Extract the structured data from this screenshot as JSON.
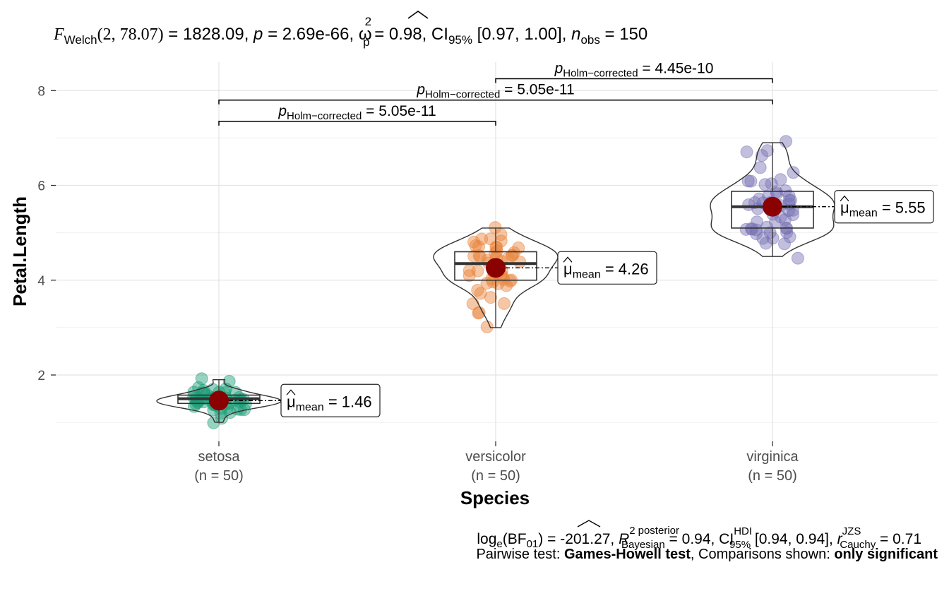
{
  "chart_data": {
    "type": "violin-box-scatter",
    "title": {
      "F_sym": "F",
      "F_sub": "Welch",
      "F_args": "(2, 78.07)",
      "F_val": " = 1828.09, ",
      "p_sym": "p",
      "p_val": " = 2.69e-66, ",
      "omega_sym": "ω",
      "omega_sup": "2",
      "omega_sub": "p",
      "omega_val": " = 0.98, CI",
      "ci_sub": "95%",
      "ci_val": " [0.97, 1.00], ",
      "n_sym": "n",
      "n_sub": "obs",
      "n_val": " = 150"
    },
    "xlabel": "Species",
    "ylabel": "Petal.Length",
    "ylim": [
      0.6,
      8.6
    ],
    "yticks": [
      2,
      4,
      6,
      8
    ],
    "grid": true,
    "categories": [
      {
        "name": "setosa",
        "n_label": "(n = 50)",
        "color": "#1B9E77",
        "mean": 1.46,
        "mean_label": "1.46",
        "q1": 1.4,
        "median": 1.5,
        "q3": 1.575,
        "whisker_low": 1.0,
        "whisker_high": 1.9,
        "points": [
          1.4,
          1.4,
          1.3,
          1.5,
          1.4,
          1.7,
          1.4,
          1.5,
          1.4,
          1.5,
          1.5,
          1.6,
          1.4,
          1.1,
          1.2,
          1.5,
          1.3,
          1.4,
          1.7,
          1.5,
          1.7,
          1.5,
          1.0,
          1.7,
          1.9,
          1.6,
          1.6,
          1.5,
          1.4,
          1.6,
          1.6,
          1.5,
          1.5,
          1.4,
          1.5,
          1.2,
          1.3,
          1.4,
          1.3,
          1.5,
          1.3,
          1.3,
          1.3,
          1.6,
          1.9,
          1.4,
          1.6,
          1.4,
          1.5,
          1.4
        ]
      },
      {
        "name": "versicolor",
        "n_label": "(n = 50)",
        "color": "#E8833A",
        "mean": 4.26,
        "mean_label": "4.26",
        "q1": 4.0,
        "median": 4.35,
        "q3": 4.6,
        "whisker_low": 3.0,
        "whisker_high": 5.1,
        "points": [
          4.7,
          4.5,
          4.9,
          4.0,
          4.6,
          4.5,
          4.7,
          3.3,
          4.6,
          3.9,
          3.5,
          4.2,
          4.0,
          4.7,
          3.6,
          4.4,
          4.5,
          4.1,
          4.5,
          3.9,
          4.8,
          4.0,
          4.9,
          4.7,
          4.3,
          4.4,
          4.8,
          5.0,
          4.5,
          3.5,
          3.8,
          3.7,
          3.9,
          5.1,
          4.5,
          4.5,
          4.7,
          4.4,
          4.1,
          4.0,
          4.4,
          4.6,
          4.0,
          3.3,
          4.2,
          4.2,
          4.2,
          4.3,
          3.0,
          4.1
        ]
      },
      {
        "name": "virginica",
        "n_label": "(n = 50)",
        "color": "#7570B3",
        "mean": 5.55,
        "mean_label": "5.55",
        "q1": 5.1,
        "median": 5.55,
        "q3": 5.875,
        "whisker_low": 4.5,
        "whisker_high": 6.9,
        "points": [
          6.0,
          5.1,
          5.9,
          5.6,
          5.8,
          6.6,
          4.5,
          6.3,
          5.8,
          6.1,
          5.1,
          5.3,
          5.5,
          5.0,
          5.1,
          5.3,
          5.5,
          6.7,
          6.9,
          5.0,
          5.7,
          4.9,
          6.7,
          4.9,
          5.7,
          6.0,
          4.8,
          4.9,
          5.6,
          5.8,
          6.1,
          6.4,
          5.6,
          5.1,
          5.6,
          6.1,
          5.6,
          5.5,
          4.8,
          5.4,
          5.6,
          5.1,
          5.1,
          5.9,
          5.7,
          5.2,
          5.0,
          5.2,
          5.4,
          5.1
        ]
      }
    ],
    "mean_label_prefix": "μ",
    "mean_label_sub": "mean",
    "mean_label_eq": " = ",
    "comparisons": [
      {
        "from": 0,
        "to": 1,
        "y": 7.35,
        "p_sym": "p",
        "p_sub": "Holm−corrected",
        "p_val": " = 5.05e-11"
      },
      {
        "from": 0,
        "to": 2,
        "y": 7.8,
        "p_sym": "p",
        "p_sub": "Holm−corrected",
        "p_val": " = 5.05e-11"
      },
      {
        "from": 1,
        "to": 2,
        "y": 8.25,
        "p_sym": "p",
        "p_sub": "Holm−corrected",
        "p_val": " = 4.45e-10"
      }
    ],
    "subtitle_bayes": {
      "log": "log",
      "log_sub": "e",
      "bf": "(BF",
      "bf_sub": "01",
      "bf_val": ") = -201.27, ",
      "r_sym": "R",
      "r_sup1": "2",
      "r_sup2": "posterior",
      "r_sub": "Bayesian",
      "r_val": " = 0.94, CI",
      "ci_sup": "HDI",
      "ci_sub": "95%",
      "ci_val": " [0.94, 0.94], ",
      "rc_sym": "r",
      "rc_sup": "JZS",
      "rc_sub": "Cauchy",
      "rc_val": " = 0.71"
    },
    "caption": {
      "pre": "Pairwise test: ",
      "test": "Games-Howell test",
      "mid": ", Comparisons shown: ",
      "shown": "only significant"
    }
  }
}
